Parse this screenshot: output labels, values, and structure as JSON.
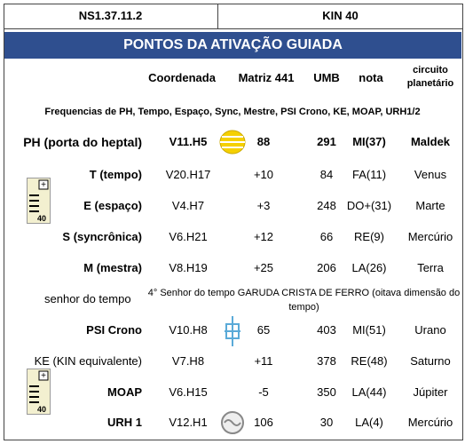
{
  "header": {
    "left": "NS1.37.11.2",
    "right": "KIN 40"
  },
  "title": "PONTOS DA ATIVAÇÃO GUIADA",
  "columns": [
    "Coordenada",
    "Matriz 441",
    "UMB",
    "nota",
    "circuito planetário"
  ],
  "subtitle": "Frequencias de PH, Tempo, Espaço, Sync, Mestre, PSI Crono, KE, MOAP, URH1/2",
  "rows": [
    [
      "PH (porta do heptal)",
      "V11.H5",
      "88",
      "291",
      "MI(37)",
      "Maldek"
    ],
    [
      "T (tempo)",
      "V20.H17",
      "+10",
      "84",
      "FA(11)",
      "Venus"
    ],
    [
      "E (espaço)",
      "V4.H7",
      "+3",
      "248",
      "DO+(31)",
      "Marte"
    ],
    [
      "S (syncrônica)",
      "V6.H21",
      "+12",
      "66",
      "RE(9)",
      "Mercúrio"
    ],
    [
      "M (mestra)",
      "V8.H19",
      "+25",
      "206",
      "LA(26)",
      "Terra"
    ],
    [
      "PSI Crono",
      "V10.H8",
      "65",
      "403",
      "MI(51)",
      "Urano"
    ],
    [
      "KE (KIN equivalente)",
      "V7.H8",
      "+11",
      "378",
      "RE(48)",
      "Saturno"
    ],
    [
      "MOAP",
      "V6.H15",
      "-5",
      "350",
      "LA(44)",
      "Júpiter"
    ],
    [
      "URH 1",
      "V12.H1",
      "106",
      "30",
      "LA(4)",
      "Mercúrio"
    ]
  ],
  "senhor": {
    "label": "senhor do tempo",
    "note": "4° Senhor do tempo GARUDA CRISTA DE FERRO (oitava dimensão do tempo)"
  }
}
